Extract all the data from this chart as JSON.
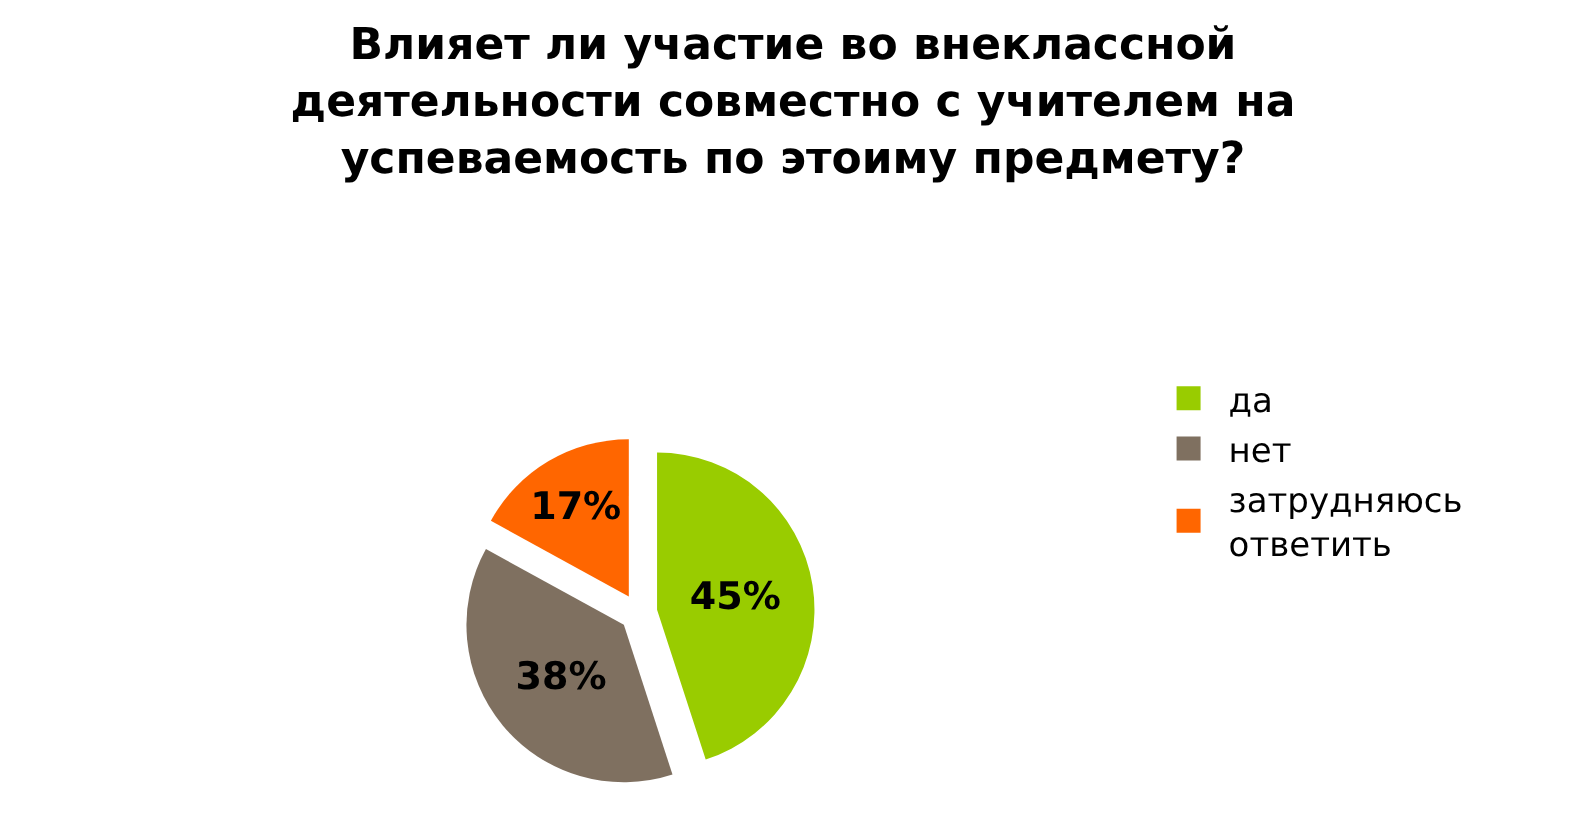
{
  "chart_data": {
    "type": "pie",
    "title": "Влияет ли участие во внеклассной деятельности совместно с учителем на успеваемость по этоиму предмету?",
    "categories": [
      "да",
      "нет",
      "затрудняюсь ответить"
    ],
    "values": [
      45,
      38,
      17
    ],
    "colors": [
      "#99cc00",
      "#7f7060",
      "#ff6600"
    ],
    "value_labels": [
      "45%",
      "38%",
      "17%"
    ],
    "legend": "right"
  }
}
